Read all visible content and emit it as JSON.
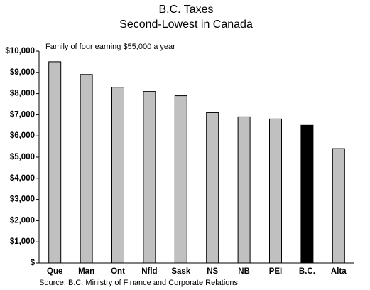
{
  "chart_data": {
    "type": "bar",
    "title": "B.C. Taxes",
    "subtitle": "Second-Lowest in Canada",
    "annotation": "Family of four earning $55,000 a year",
    "source": "Source: B.C. Ministry of Finance and Corporate Relations",
    "categories": [
      "Que",
      "Man",
      "Ont",
      "Nfld",
      "Sask",
      "NS",
      "NB",
      "PEI",
      "B.C.",
      "Alta"
    ],
    "values": [
      9500,
      8900,
      8300,
      8100,
      7900,
      7100,
      6900,
      6800,
      6500,
      5400
    ],
    "colors": [
      "#c0c0c0",
      "#c0c0c0",
      "#c0c0c0",
      "#c0c0c0",
      "#c0c0c0",
      "#c0c0c0",
      "#c0c0c0",
      "#c0c0c0",
      "#000000",
      "#c0c0c0"
    ],
    "ylim": [
      0,
      10000
    ],
    "yticks": [
      {
        "value": 0,
        "label": "$"
      },
      {
        "value": 1000,
        "label": "$1,000"
      },
      {
        "value": 2000,
        "label": "$2,000"
      },
      {
        "value": 3000,
        "label": "$3,000"
      },
      {
        "value": 4000,
        "label": "$4,000"
      },
      {
        "value": 5000,
        "label": "$5,000"
      },
      {
        "value": 6000,
        "label": "$6,000"
      },
      {
        "value": 7000,
        "label": "$7,000"
      },
      {
        "value": 8000,
        "label": "$8,000"
      },
      {
        "value": 9000,
        "label": "$9,000"
      },
      {
        "value": 10000,
        "label": "$10,000"
      }
    ],
    "grid": false
  }
}
